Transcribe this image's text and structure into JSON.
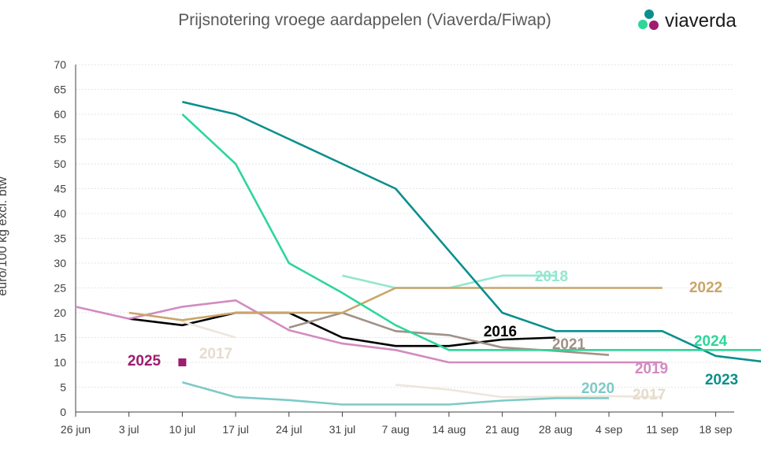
{
  "chart_data": {
    "type": "line",
    "title": "Prijsnotering vroege aardappelen (Viaverda/Fiwap)",
    "ylabel": "euro/100 kg excl. btw",
    "xlabel": "",
    "ylim": [
      0,
      70
    ],
    "y_ticks": [
      0,
      5,
      10,
      15,
      20,
      25,
      30,
      35,
      40,
      45,
      50,
      55,
      60,
      65,
      70
    ],
    "x_ticks": [
      "26 jun",
      "3 jul",
      "10 jul",
      "17 jul",
      "24 jul",
      "31 jul",
      "7 aug",
      "14 aug",
      "21 aug",
      "28 aug",
      "4 sep",
      "11 sep",
      "18 sep"
    ],
    "grid": "horizontal",
    "legend": "inline labels at line ends",
    "series": [
      {
        "name": "2016",
        "color": "#000000",
        "x": [
          1,
          2,
          3,
          4,
          5,
          6,
          7,
          8,
          9
        ],
        "y": [
          18.8,
          17.5,
          20,
          20,
          15,
          13.3,
          13.3,
          14.6,
          15
        ]
      },
      {
        "name": "2017",
        "color": "#ede6dc",
        "x": [
          2,
          3
        ],
        "y": [
          18.2,
          15
        ]
      },
      {
        "name": "2017",
        "color": "#ede6dc",
        "x": [
          6,
          7,
          8,
          9,
          10,
          11
        ],
        "y": [
          5.5,
          4.5,
          3.0,
          3.1,
          3.2,
          3.0
        ]
      },
      {
        "name": "2018",
        "color": "#93e7cf",
        "x": [
          5,
          6,
          7,
          8,
          9
        ],
        "y": [
          27.5,
          25,
          25,
          27.5,
          27.5
        ]
      },
      {
        "name": "2019",
        "color": "#d28bc0",
        "x": [
          0,
          1,
          2,
          3,
          4,
          5,
          6,
          7,
          8,
          9,
          10,
          11
        ],
        "y": [
          21.2,
          18.8,
          21.2,
          22.5,
          16.5,
          13.8,
          12.5,
          10,
          10,
          10,
          10,
          10
        ]
      },
      {
        "name": "2020",
        "color": "#7ecac6",
        "x": [
          2,
          3,
          4,
          5,
          6,
          7,
          8,
          9,
          10
        ],
        "y": [
          6,
          3,
          2.4,
          1.5,
          1.5,
          1.5,
          2.3,
          2.8,
          2.8
        ]
      },
      {
        "name": "2021",
        "color": "#a09187",
        "x": [
          4,
          5,
          6,
          7,
          8,
          9,
          10
        ],
        "y": [
          17,
          20,
          16.3,
          15.5,
          13,
          12.3,
          11.5
        ]
      },
      {
        "name": "2022",
        "color": "#c9a56a",
        "x": [
          1,
          2,
          3,
          4,
          5,
          6,
          7,
          8,
          9,
          10,
          11
        ],
        "y": [
          20,
          18.5,
          20,
          20,
          20,
          25,
          25,
          25,
          25,
          25,
          25
        ]
      },
      {
        "name": "2023",
        "color": "#0a8f8c",
        "x": [
          2,
          3,
          4,
          5,
          6,
          7,
          8,
          9,
          10,
          11,
          12,
          13
        ],
        "y": [
          62.5,
          60,
          55,
          50,
          45,
          32.5,
          20,
          16.3,
          16.3,
          16.3,
          11.3,
          10
        ]
      },
      {
        "name": "2024",
        "color": "#2ed69a",
        "x": [
          2,
          3,
          4,
          5,
          6,
          7,
          8,
          9,
          10,
          11,
          12,
          13
        ],
        "y": [
          60,
          50,
          30,
          24,
          17.5,
          12.5,
          12.5,
          12.5,
          12.5,
          12.5,
          12.5,
          12.5
        ]
      }
    ],
    "markers": [
      {
        "name": "2025",
        "color": "#9e1d6e",
        "x": 2,
        "y": 10
      }
    ]
  },
  "logo": {
    "text": "viaverda",
    "colors": [
      "#2ed69a",
      "#0a8f8c",
      "#9e1d6e"
    ]
  }
}
